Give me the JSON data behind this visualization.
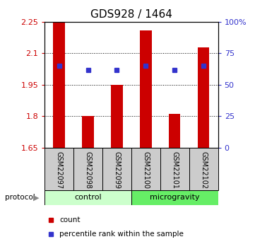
{
  "title": "GDS928 / 1464",
  "samples": [
    "GSM22097",
    "GSM22098",
    "GSM22099",
    "GSM22100",
    "GSM22101",
    "GSM22102"
  ],
  "bar_values": [
    2.25,
    1.8,
    1.95,
    2.21,
    1.81,
    2.13
  ],
  "dot_values": [
    2.04,
    2.02,
    2.02,
    2.04,
    2.02,
    2.04
  ],
  "bar_bottom": 1.65,
  "ylim": [
    1.65,
    2.25
  ],
  "yticks_left": [
    1.65,
    1.8,
    1.95,
    2.1,
    2.25
  ],
  "yticks_right": [
    0,
    25,
    50,
    75,
    100
  ],
  "ytick_labels_left": [
    "1.65",
    "1.8",
    "1.95",
    "2.1",
    "2.25"
  ],
  "ytick_labels_right": [
    "0",
    "25",
    "50",
    "75",
    "100%"
  ],
  "bar_color": "#cc0000",
  "dot_color": "#3333cc",
  "control_label": "control",
  "microgravity_label": "microgravity",
  "protocol_label": "protocol",
  "legend_count": "count",
  "legend_percentile": "percentile rank within the sample",
  "control_color": "#ccffcc",
  "microgravity_color": "#66ee66",
  "sample_box_color": "#cccccc",
  "title_fontsize": 11,
  "tick_fontsize": 8,
  "label_fontsize": 8
}
